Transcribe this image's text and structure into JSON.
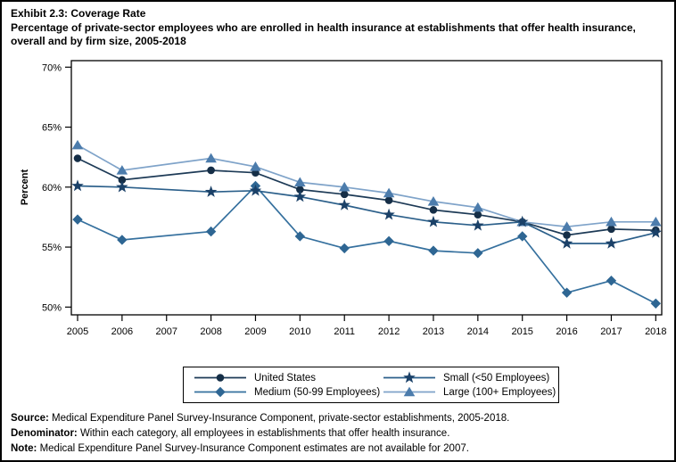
{
  "page": {
    "title_line1": "Exhibit 2.3: Coverage Rate",
    "title_line2": "Percentage of private-sector employees who are enrolled in health insurance at establishments that offer health insurance, overall and by firm size, 2005-2018"
  },
  "chart_data": {
    "type": "line",
    "title": "Exhibit 2.3: Coverage Rate",
    "subtitle": "Percentage of private-sector employees who are enrolled in health insurance at establishments that offer health insurance, overall and by firm size, 2005-2018",
    "xlabel": "",
    "ylabel": "Percent",
    "ylim": [
      50,
      70
    ],
    "y_ticks": [
      50,
      55,
      60,
      65,
      70
    ],
    "y_tick_suffix": "%",
    "x_ticks": [
      2005,
      2006,
      2007,
      2008,
      2009,
      2010,
      2011,
      2012,
      2013,
      2014,
      2015,
      2016,
      2017,
      2018
    ],
    "x": [
      2005,
      2006,
      2008,
      2009,
      2010,
      2011,
      2012,
      2013,
      2014,
      2015,
      2016,
      2017,
      2018
    ],
    "missing_years": [
      2007
    ],
    "grid": false,
    "legend_position": "bottom",
    "series": [
      {
        "name": "United States",
        "marker": "circle",
        "color": "#1D3A56",
        "marker_color": "#152E47",
        "values": [
          62.4,
          60.6,
          61.4,
          61.2,
          59.8,
          59.4,
          58.9,
          58.1,
          57.7,
          57.1,
          56.0,
          56.5,
          56.4
        ]
      },
      {
        "name": "Medium (50-99 Employees)",
        "marker": "diamond",
        "color": "#35709E",
        "marker_color": "#2E6693",
        "values": [
          57.3,
          55.6,
          56.3,
          60.1,
          55.9,
          54.9,
          55.5,
          54.7,
          54.5,
          55.9,
          51.2,
          52.2,
          50.3
        ]
      },
      {
        "name": "Small (<50 Employees)",
        "marker": "star",
        "color": "#2B5F8A",
        "marker_color": "#1B4168",
        "values": [
          60.1,
          60.0,
          59.6,
          59.7,
          59.2,
          58.5,
          57.7,
          57.1,
          56.8,
          57.1,
          55.3,
          55.3,
          56.2
        ]
      },
      {
        "name": "Large (100+ Employees)",
        "marker": "triangle",
        "color": "#7FA3C9",
        "marker_color": "#4C7CAC",
        "values": [
          63.5,
          61.4,
          62.4,
          61.7,
          60.4,
          60.0,
          59.5,
          58.8,
          58.3,
          57.1,
          56.7,
          57.1,
          57.1
        ]
      }
    ]
  },
  "footnotes": [
    {
      "label": "Source:",
      "text": " Medical Expenditure Panel Survey-Insurance Component, private-sector establishments, 2005-2018."
    },
    {
      "label": "Denominator:",
      "text": " Within each category, all employees in establishments that offer health insurance."
    },
    {
      "label": "Note:",
      "text": " Medical Expenditure Panel Survey-Insurance Component estimates are not available for 2007."
    }
  ]
}
